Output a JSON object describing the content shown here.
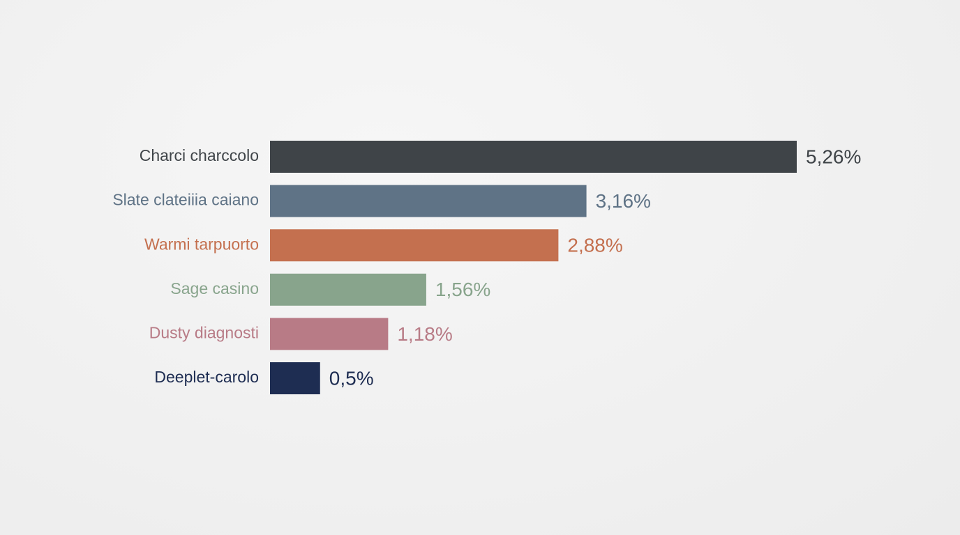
{
  "chart_data": {
    "type": "bar",
    "orientation": "horizontal",
    "categories": [
      "Charci charccolo",
      "Slate clateiiia caiano",
      "Warmi tarpuorto",
      "Sage casino",
      "Dusty diagnosti",
      "Deeplet-carolo"
    ],
    "values": [
      5.26,
      3.16,
      2.88,
      1.56,
      1.18,
      0.5
    ],
    "value_labels": [
      "5,26%",
      "3,16%",
      "2,88%",
      "1,56%",
      "1,18%",
      "0,5%"
    ],
    "colors": [
      "#3f4448",
      "#5f7386",
      "#c4704f",
      "#88a48c",
      "#b87b86",
      "#1e2d52"
    ]
  }
}
